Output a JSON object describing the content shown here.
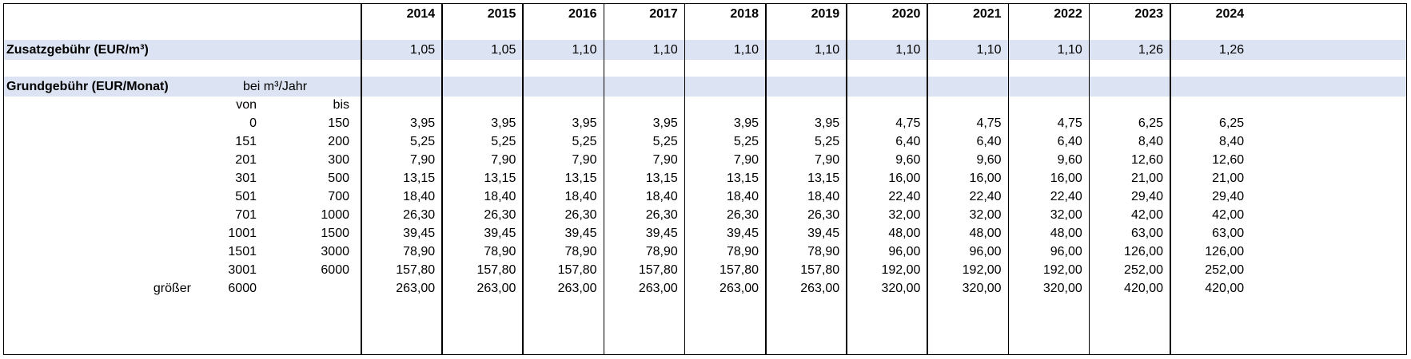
{
  "years": [
    "2014",
    "2015",
    "2016",
    "2017",
    "2018",
    "2019",
    "2020",
    "2021",
    "2022",
    "2023",
    "2024"
  ],
  "zusatz": {
    "label": "Zusatzgebühr (EUR/m³)",
    "values": [
      "1,05",
      "1,05",
      "1,10",
      "1,10",
      "1,10",
      "1,10",
      "1,10",
      "1,10",
      "1,10",
      "1,26",
      "1,26"
    ]
  },
  "grund": {
    "label": "Grundgebühr (EUR/Monat)",
    "unit_label": "bei m³/Jahr",
    "von_label": "von",
    "bis_label": "bis",
    "rows": [
      {
        "prefix": "",
        "von": "0",
        "bis": "150",
        "values": [
          "3,95",
          "3,95",
          "3,95",
          "3,95",
          "3,95",
          "3,95",
          "4,75",
          "4,75",
          "4,75",
          "6,25",
          "6,25"
        ]
      },
      {
        "prefix": "",
        "von": "151",
        "bis": "200",
        "values": [
          "5,25",
          "5,25",
          "5,25",
          "5,25",
          "5,25",
          "5,25",
          "6,40",
          "6,40",
          "6,40",
          "8,40",
          "8,40"
        ]
      },
      {
        "prefix": "",
        "von": "201",
        "bis": "300",
        "values": [
          "7,90",
          "7,90",
          "7,90",
          "7,90",
          "7,90",
          "7,90",
          "9,60",
          "9,60",
          "9,60",
          "12,60",
          "12,60"
        ]
      },
      {
        "prefix": "",
        "von": "301",
        "bis": "500",
        "values": [
          "13,15",
          "13,15",
          "13,15",
          "13,15",
          "13,15",
          "13,15",
          "16,00",
          "16,00",
          "16,00",
          "21,00",
          "21,00"
        ]
      },
      {
        "prefix": "",
        "von": "501",
        "bis": "700",
        "values": [
          "18,40",
          "18,40",
          "18,40",
          "18,40",
          "18,40",
          "18,40",
          "22,40",
          "22,40",
          "22,40",
          "29,40",
          "29,40"
        ]
      },
      {
        "prefix": "",
        "von": "701",
        "bis": "1000",
        "values": [
          "26,30",
          "26,30",
          "26,30",
          "26,30",
          "26,30",
          "26,30",
          "32,00",
          "32,00",
          "32,00",
          "42,00",
          "42,00"
        ]
      },
      {
        "prefix": "",
        "von": "1001",
        "bis": "1500",
        "values": [
          "39,45",
          "39,45",
          "39,45",
          "39,45",
          "39,45",
          "39,45",
          "48,00",
          "48,00",
          "48,00",
          "63,00",
          "63,00"
        ]
      },
      {
        "prefix": "",
        "von": "1501",
        "bis": "3000",
        "values": [
          "78,90",
          "78,90",
          "78,90",
          "78,90",
          "78,90",
          "78,90",
          "96,00",
          "96,00",
          "96,00",
          "126,00",
          "126,00"
        ]
      },
      {
        "prefix": "",
        "von": "3001",
        "bis": "6000",
        "values": [
          "157,80",
          "157,80",
          "157,80",
          "157,80",
          "157,80",
          "157,80",
          "192,00",
          "192,00",
          "192,00",
          "252,00",
          "252,00"
        ]
      },
      {
        "prefix": "größer",
        "von": "6000",
        "bis": "",
        "values": [
          "263,00",
          "263,00",
          "263,00",
          "263,00",
          "263,00",
          "263,00",
          "320,00",
          "320,00",
          "320,00",
          "420,00",
          "420,00"
        ]
      }
    ]
  }
}
